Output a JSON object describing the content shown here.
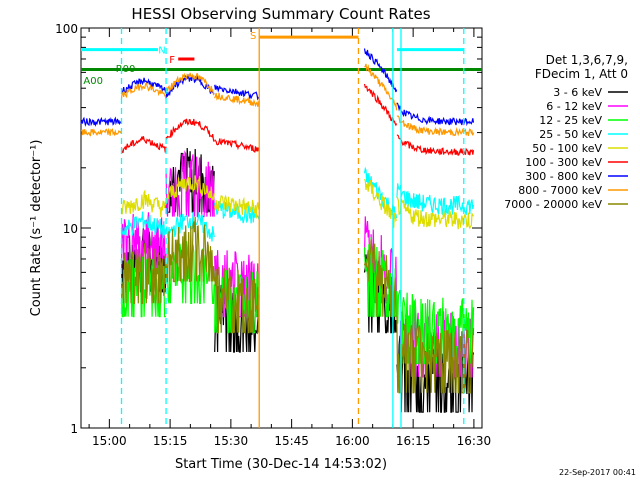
{
  "chart_data": {
    "type": "line",
    "title": "HESSI Observing Summary Count Rates",
    "xlabel": "Start Time (30-Dec-14 14:53:02)",
    "ylabel": "Count Rate (s⁻¹ detector⁻¹)",
    "timestamp": "22-Sep-2017 00:41",
    "y_scale": "log",
    "ylim": [
      1,
      100
    ],
    "xlim_minutes_after_1500": [
      -7,
      92
    ],
    "x_ticks": [
      {
        "t": 0,
        "label": "15:00"
      },
      {
        "t": 15,
        "label": "15:15"
      },
      {
        "t": 30,
        "label": "15:30"
      },
      {
        "t": 45,
        "label": "15:45"
      },
      {
        "t": 60,
        "label": "16:00"
      },
      {
        "t": 75,
        "label": "16:15"
      },
      {
        "t": 90,
        "label": "16:30"
      }
    ],
    "y_tick_labels": [
      {
        "v": 100,
        "label": "100"
      },
      {
        "v": 10,
        "label": "10"
      },
      {
        "v": 1,
        "label": "1"
      }
    ],
    "legend_header": [
      "Det 1,3,6,7,9,",
      "FDecim 1, Att 0"
    ],
    "series": [
      {
        "name": "3 - 6 keV",
        "color": "#000000",
        "levels": [
          null,
          8,
          20,
          4,
          null,
          5,
          2
        ]
      },
      {
        "name": "6 - 12 keV",
        "color": "#ff00ff",
        "levels": [
          null,
          10,
          19,
          6,
          null,
          7,
          3
        ]
      },
      {
        "name": "12 - 25 keV",
        "color": "#00ff00",
        "levels": [
          null,
          6,
          7,
          5,
          null,
          6,
          3.5
        ]
      },
      {
        "name": "25 - 50 keV",
        "color": "#00ffff",
        "levels": [
          null,
          11,
          11,
          12,
          null,
          14,
          13
        ]
      },
      {
        "name": "50 - 100 keV",
        "color": "#dddd00",
        "levels": [
          null,
          14,
          17,
          13,
          null,
          13,
          11
        ]
      },
      {
        "name": "100 - 300 keV",
        "color": "#ff0000",
        "levels": [
          null,
          28,
          34,
          26,
          null,
          40,
          24
        ]
      },
      {
        "name": "300 - 800 keV",
        "color": "#0000ff",
        "levels": [
          34,
          55,
          56,
          48,
          null,
          60,
          34
        ]
      },
      {
        "name": "800 - 7000 keV",
        "color": "#ff9900",
        "levels": [
          30,
          52,
          58,
          44,
          null,
          50,
          30
        ]
      },
      {
        "name": "7000 - 20000 keV",
        "color": "#888800",
        "levels": [
          null,
          7,
          9,
          5,
          null,
          6,
          2.5
        ]
      }
    ],
    "flags": [
      {
        "label": "N",
        "color": "#00ffff"
      },
      {
        "label": "F",
        "color": "#ff0000"
      },
      {
        "label": "S",
        "color": "#ff9900"
      },
      {
        "label": "R00",
        "color": "#008800"
      },
      {
        "label": "A00",
        "color": "#008800"
      }
    ]
  }
}
